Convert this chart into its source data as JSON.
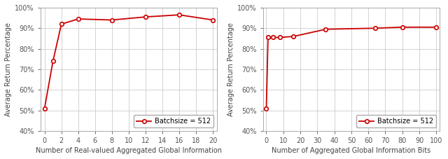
{
  "left": {
    "x": [
      0,
      1,
      2,
      4,
      8,
      12,
      16,
      20
    ],
    "y": [
      51,
      74,
      92,
      94.5,
      94,
      95.5,
      96.5,
      94
    ],
    "xlabel": "Number of Real-valued Aggregated Global Information",
    "ylabel": "Average Return Percentage",
    "xlim": [
      -0.5,
      20.5
    ],
    "ylim": [
      40,
      100
    ],
    "xticks": [
      0,
      2,
      4,
      6,
      8,
      10,
      12,
      14,
      16,
      18,
      20
    ],
    "yticks": [
      40,
      50,
      60,
      70,
      80,
      90,
      100
    ],
    "ytick_labels": [
      "40%",
      "50%",
      "60%",
      "70%",
      "80%",
      "90%",
      "100%"
    ],
    "legend": "Batchsize = 512"
  },
  "right": {
    "x": [
      0,
      1,
      4,
      8,
      16,
      35,
      64,
      80,
      100
    ],
    "y": [
      51,
      85.5,
      85.5,
      85.5,
      86,
      89.5,
      90,
      90.5,
      90.5
    ],
    "xlabel": "Number of Aggregated Global Information Bits",
    "ylabel": "Average Return Percentage",
    "xlim": [
      -2,
      102
    ],
    "ylim": [
      40,
      100
    ],
    "xticks": [
      0,
      10,
      20,
      30,
      40,
      50,
      60,
      70,
      80,
      90,
      100
    ],
    "yticks": [
      40,
      50,
      60,
      70,
      80,
      90,
      100
    ],
    "ytick_labels": [
      "40%",
      "50%",
      "60%",
      "70%",
      "80%",
      "90%",
      "100%"
    ],
    "legend": "Batchsize = 512"
  },
  "line_color": "#cc0000",
  "marker": "o",
  "marker_facecolor": "white",
  "marker_edgecolor": "#cc0000",
  "marker_size": 4,
  "marker_edgewidth": 1.2,
  "line_width": 1.3,
  "grid_color": "#cccccc",
  "spine_color": "#aaaaaa",
  "tick_label_color": "#555555",
  "axis_label_fontsize": 7.0,
  "tick_fontsize": 7.0,
  "legend_fontsize": 7.0,
  "background_color": "#ffffff"
}
